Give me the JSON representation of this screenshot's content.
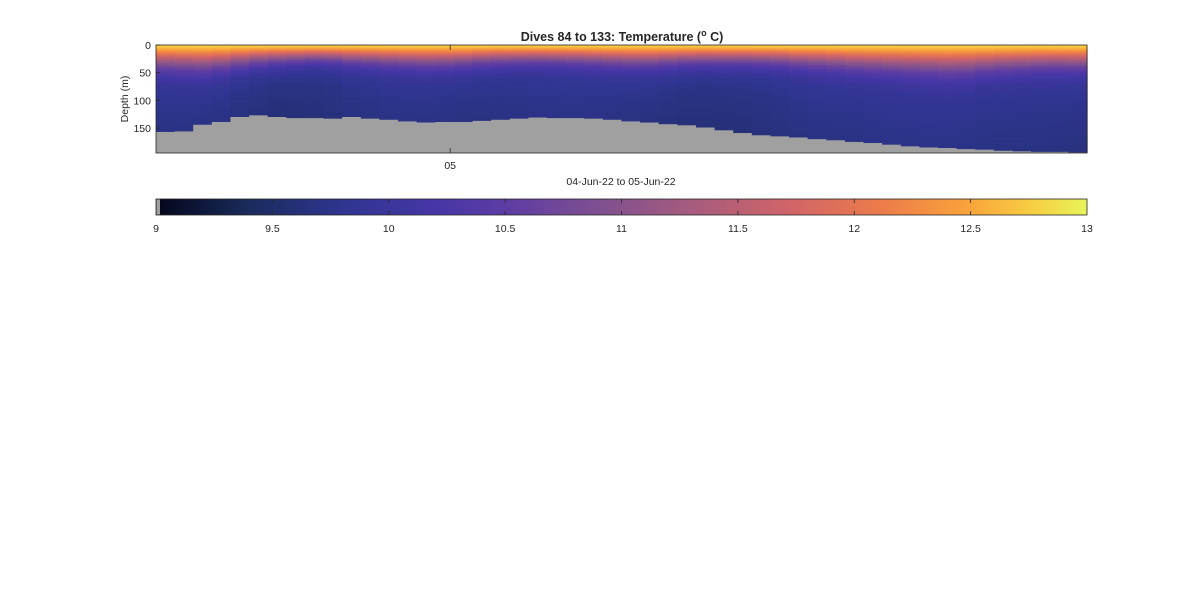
{
  "chart_data": {
    "type": "heatmap",
    "title_main": "Dives 84 to 133: Temperature (",
    "title_sup": "o",
    "title_unit": " C)",
    "xlabel": "04-Jun-22 to 05-Jun-22",
    "ylabel": "Depth (m)",
    "x_ticks": [
      {
        "label": "05",
        "dive": 99.3
      }
    ],
    "y_ticks": [
      0,
      50,
      100,
      150
    ],
    "ylim": [
      0,
      195
    ],
    "dives": [
      84,
      133
    ],
    "nan_color": "#a0a0a0",
    "bottom_depth_m": [
      157,
      156,
      144,
      139,
      130,
      127,
      130,
      132,
      132,
      133,
      130,
      133,
      135,
      138,
      140,
      139,
      139,
      137,
      135,
      133,
      131,
      132,
      132,
      133,
      135,
      138,
      140,
      143,
      145,
      149,
      154,
      159,
      163,
      165,
      167,
      170,
      172,
      175,
      177,
      180,
      183,
      185,
      186,
      188,
      189,
      191,
      192,
      193,
      193,
      194
    ],
    "mixed_layer_m": [
      58,
      60,
      62,
      58,
      52,
      47,
      44,
      42,
      40,
      41,
      44,
      46,
      48,
      50,
      52,
      51,
      49,
      46,
      44,
      43,
      42,
      43,
      44,
      46,
      48,
      50,
      50,
      48,
      46,
      45,
      45,
      45,
      46,
      47,
      50,
      52,
      55,
      58,
      60,
      62,
      64,
      66,
      68,
      67,
      63,
      60,
      58,
      56,
      56,
      57
    ],
    "deep_temp_c": [
      9.78,
      9.78,
      9.76,
      9.75,
      9.72,
      9.7,
      9.68,
      9.69,
      9.7,
      9.72,
      9.75,
      9.76,
      9.78,
      9.78,
      9.78,
      9.77,
      9.76,
      9.76,
      9.77,
      9.78,
      9.8,
      9.8,
      9.8,
      9.79,
      9.78,
      9.76,
      9.74,
      9.72,
      9.7,
      9.7,
      9.71,
      9.72,
      9.74,
      9.76,
      9.78,
      9.8,
      9.8,
      9.8,
      9.81,
      9.82,
      9.82,
      9.82,
      9.82,
      9.81,
      9.8,
      9.8,
      9.8,
      9.8,
      9.79,
      9.78
    ],
    "surface_temp_c": 12.8,
    "colorbar": {
      "range": [
        9,
        13
      ],
      "ticks": [
        9,
        9.5,
        10,
        10.5,
        11,
        11.5,
        12,
        12.5,
        13
      ],
      "tick_labels": [
        "9",
        "9.5",
        "10",
        "10.5",
        "11",
        "11.5",
        "12",
        "12.5",
        "13"
      ],
      "colormap_stops": [
        [
          0.0,
          "#03051a"
        ],
        [
          0.1,
          "#1a2b5c"
        ],
        [
          0.2,
          "#2f3590"
        ],
        [
          0.3,
          "#4636a6"
        ],
        [
          0.38,
          "#5e3da3"
        ],
        [
          0.48,
          "#80508f"
        ],
        [
          0.58,
          "#a85c7d"
        ],
        [
          0.68,
          "#d06468"
        ],
        [
          0.78,
          "#ec7c4a"
        ],
        [
          0.87,
          "#f9a23b"
        ],
        [
          0.94,
          "#f7cd43"
        ],
        [
          1.0,
          "#e8f45b"
        ]
      ]
    }
  }
}
